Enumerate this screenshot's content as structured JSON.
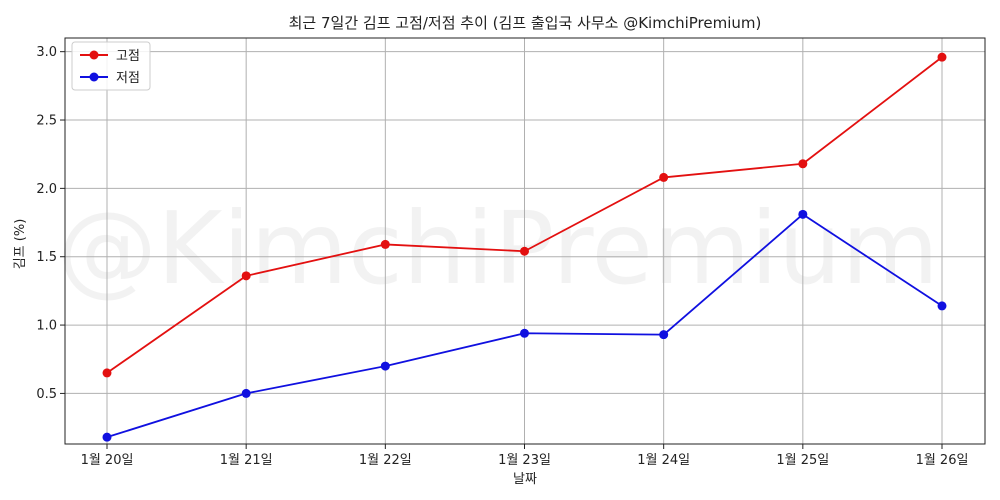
{
  "chart_data": {
    "type": "line",
    "title": "최근 7일간 김프 고점/저점 추이 (김프 출입국 사무소 @KimchiPremium)",
    "xlabel": "날짜",
    "ylabel": "김프 (%)",
    "watermark": "@KimchiPremium",
    "categories": [
      "1월 20일",
      "1월 21일",
      "1월 22일",
      "1월 23일",
      "1월 24일",
      "1월 25일",
      "1월 26일"
    ],
    "yticks": [
      "0.5",
      "1.0",
      "1.5",
      "2.0",
      "2.5",
      "3.0"
    ],
    "ylim": [
      0.13,
      3.1
    ],
    "grid": true,
    "legend_position": "top-left",
    "series": [
      {
        "name": "고점",
        "color": "#e31010",
        "values": [
          0.65,
          1.36,
          1.59,
          1.54,
          2.08,
          2.18,
          2.96
        ]
      },
      {
        "name": "저점",
        "color": "#1010e0",
        "values": [
          0.18,
          0.5,
          0.7,
          0.94,
          0.93,
          1.81,
          1.14
        ]
      }
    ]
  }
}
